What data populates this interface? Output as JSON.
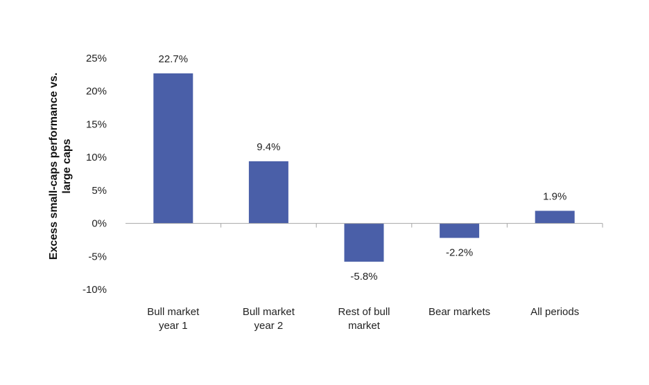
{
  "chart_data": {
    "type": "bar",
    "title": "",
    "xlabel": "",
    "ylabel_lines": [
      "Excess small-caps performance vs.",
      "large caps"
    ],
    "categories": [
      [
        "Bull market",
        "year 1"
      ],
      [
        "Bull market",
        "year 2"
      ],
      [
        "Rest of bull",
        "market"
      ],
      [
        "Bear markets"
      ],
      [
        "All periods"
      ]
    ],
    "values": [
      22.7,
      9.4,
      -5.8,
      -2.2,
      1.9
    ],
    "value_labels": [
      "22.7%",
      "9.4%",
      "-5.8%",
      "-2.2%",
      "1.9%"
    ],
    "ylim": [
      -10,
      25
    ],
    "yticks": [
      25,
      20,
      15,
      10,
      5,
      0,
      -5,
      -10
    ],
    "ytick_labels": [
      "25%",
      "20%",
      "15%",
      "10%",
      "5%",
      "0%",
      "-5%",
      "-10%"
    ],
    "grid": false,
    "legend": "none",
    "bar_color": "#4a5fa8",
    "axis_color": "#a6a6a6"
  }
}
